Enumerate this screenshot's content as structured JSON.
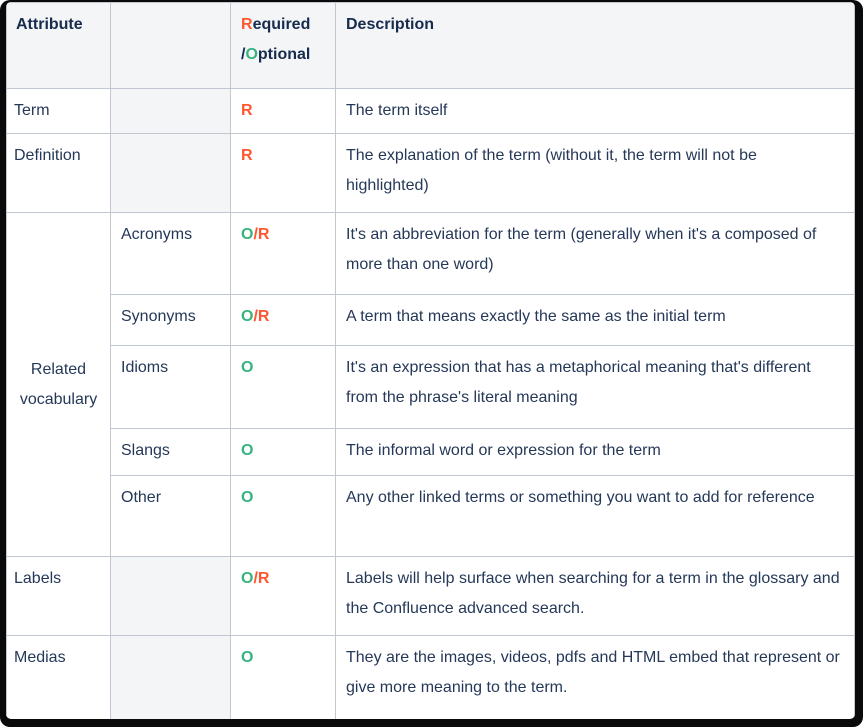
{
  "colors": {
    "text": "#253858",
    "heading": "#172b4d",
    "red": "#ff5630",
    "green": "#36b37e",
    "border": "#c1c7d0",
    "shade": "#f4f5f7"
  },
  "table": {
    "header": {
      "attribute": "Attribute",
      "blank": "",
      "required_r": "R",
      "required_rest": "equired",
      "slash": "/",
      "optional_o": "O",
      "optional_rest": "ptional",
      "description": "Description"
    },
    "rows": [
      {
        "attribute": "Term",
        "sub": "",
        "req_optional": "",
        "req_required": "R",
        "description": "The term itself"
      },
      {
        "attribute": "Definition",
        "sub": "",
        "req_optional": "",
        "req_required": "R",
        "description": "The explanation of the term (without it, the term will not be highlighted)"
      },
      {
        "attribute": "Related vocabulary",
        "sub": "Acronyms",
        "req_optional": "O",
        "req_required": "/R",
        "description": "It's an abbreviation for the term (generally when it's a composed of more than one word)"
      },
      {
        "sub": "Synonyms",
        "req_optional": "O",
        "req_required": "/R",
        "description": "A term that means exactly the same as the initial term"
      },
      {
        "sub": "Idioms",
        "req_optional": "O",
        "req_required": "",
        "description": "It's an expression that has a metaphorical meaning that's different from the phrase's literal meaning"
      },
      {
        "sub": "Slangs",
        "req_optional": "O",
        "req_required": "",
        "description": "The informal word or expression for the term"
      },
      {
        "sub": "Other",
        "req_optional": "O",
        "req_required": "",
        "description": "Any other linked terms or something you want to add for reference"
      },
      {
        "attribute": "Labels",
        "sub": "",
        "req_optional": "O",
        "req_required": "/R",
        "description": "Labels will help surface when searching for a term in the glossary and the Confluence advanced search."
      },
      {
        "attribute": "Medias",
        "sub": "",
        "req_optional": "O",
        "req_required": "",
        "description": "They are the images, videos, pdfs and HTML embed that represent or give more meaning to the term."
      }
    ]
  }
}
